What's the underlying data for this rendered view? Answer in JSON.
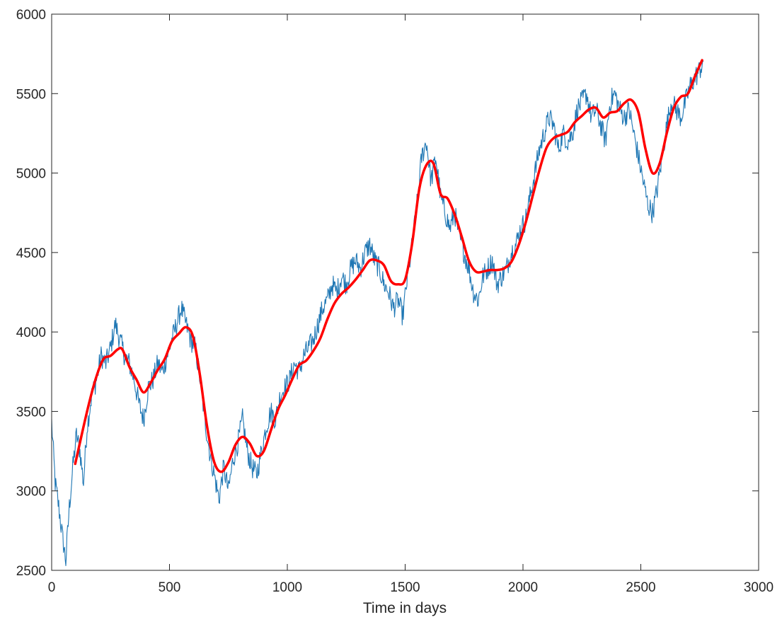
{
  "chart_data": {
    "type": "line",
    "xlabel": "Time in days",
    "ylabel": "",
    "title": "",
    "xlim": [
      0,
      3000
    ],
    "ylim": [
      2500,
      6000
    ],
    "xticks": [
      0,
      500,
      1000,
      1500,
      2000,
      2500,
      3000
    ],
    "yticks": [
      2500,
      3000,
      3500,
      4000,
      4500,
      5000,
      5500,
      6000
    ],
    "grid": false,
    "legend": "none",
    "series": [
      {
        "color": "#1f77b4",
        "kind": "noisy",
        "x": [
          0,
          15,
          30,
          45,
          60,
          75,
          90,
          105,
          120,
          135,
          150,
          170,
          190,
          210,
          230,
          250,
          270,
          290,
          310,
          330,
          350,
          370,
          390,
          410,
          430,
          450,
          470,
          490,
          510,
          530,
          550,
          570,
          590,
          610,
          630,
          650,
          670,
          690,
          710,
          730,
          750,
          770,
          790,
          810,
          830,
          850,
          870,
          890,
          910,
          930,
          950,
          970,
          990,
          1010,
          1030,
          1050,
          1070,
          1090,
          1110,
          1130,
          1150,
          1170,
          1190,
          1210,
          1230,
          1250,
          1270,
          1290,
          1310,
          1330,
          1350,
          1370,
          1390,
          1410,
          1430,
          1450,
          1470,
          1490,
          1510,
          1530,
          1550,
          1570,
          1590,
          1610,
          1630,
          1650,
          1670,
          1690,
          1710,
          1730,
          1750,
          1770,
          1790,
          1810,
          1830,
          1850,
          1870,
          1890,
          1910,
          1930,
          1950,
          1970,
          1990,
          2010,
          2030,
          2050,
          2070,
          2090,
          2110,
          2130,
          2150,
          2170,
          2190,
          2210,
          2230,
          2250,
          2270,
          2290,
          2310,
          2330,
          2350,
          2370,
          2390,
          2410,
          2430,
          2450,
          2470,
          2490,
          2510,
          2530,
          2550,
          2570,
          2590,
          2610,
          2630,
          2650,
          2670,
          2690,
          2710,
          2730,
          2750,
          2765
        ],
        "y": [
          3430,
          3050,
          2900,
          2720,
          2560,
          2900,
          3150,
          3350,
          3250,
          3050,
          3400,
          3600,
          3700,
          3850,
          3800,
          3900,
          4050,
          3950,
          3850,
          3800,
          3700,
          3550,
          3450,
          3650,
          3700,
          3800,
          3750,
          3850,
          3950,
          4050,
          4150,
          4050,
          3950,
          3900,
          3700,
          3450,
          3250,
          3100,
          2950,
          3150,
          3000,
          3200,
          3300,
          3450,
          3250,
          3150,
          3100,
          3250,
          3400,
          3500,
          3450,
          3600,
          3650,
          3700,
          3800,
          3750,
          3850,
          3900,
          3950,
          4050,
          4150,
          4200,
          4300,
          4250,
          4350,
          4300,
          4400,
          4450,
          4400,
          4500,
          4550,
          4450,
          4400,
          4300,
          4250,
          4150,
          4200,
          4100,
          4350,
          4550,
          4800,
          5100,
          5200,
          4950,
          5100,
          4850,
          4750,
          4650,
          4750,
          4600,
          4500,
          4400,
          4250,
          4200,
          4350,
          4400,
          4450,
          4300,
          4350,
          4400,
          4500,
          4550,
          4650,
          4700,
          4850,
          5000,
          5150,
          5250,
          5350,
          5300,
          5150,
          5250,
          5200,
          5250,
          5400,
          5450,
          5500,
          5350,
          5400,
          5300,
          5200,
          5450,
          5500,
          5400,
          5350,
          5400,
          5250,
          5100,
          4950,
          4800,
          4750,
          4900,
          5100,
          5300,
          5450,
          5400,
          5350,
          5450,
          5550,
          5600,
          5650,
          5700
        ]
      },
      {
        "color": "#ff0000",
        "kind": "smooth",
        "x": [
          100,
          130,
          160,
          190,
          220,
          250,
          280,
          300,
          330,
          360,
          390,
          420,
          450,
          480,
          510,
          540,
          570,
          600,
          630,
          660,
          690,
          720,
          750,
          780,
          810,
          840,
          870,
          900,
          930,
          960,
          990,
          1020,
          1050,
          1080,
          1110,
          1140,
          1170,
          1200,
          1230,
          1260,
          1290,
          1320,
          1350,
          1380,
          1410,
          1440,
          1470,
          1500,
          1530,
          1560,
          1590,
          1620,
          1650,
          1680,
          1710,
          1740,
          1770,
          1800,
          1830,
          1860,
          1890,
          1920,
          1950,
          1980,
          2010,
          2040,
          2070,
          2100,
          2130,
          2160,
          2190,
          2220,
          2250,
          2280,
          2310,
          2340,
          2370,
          2400,
          2430,
          2460,
          2490,
          2520,
          2550,
          2580,
          2610,
          2640,
          2670,
          2700,
          2730,
          2760
        ],
        "y": [
          3170,
          3370,
          3560,
          3720,
          3830,
          3850,
          3890,
          3890,
          3780,
          3700,
          3620,
          3680,
          3760,
          3830,
          3940,
          3990,
          4030,
          3970,
          3720,
          3400,
          3180,
          3120,
          3180,
          3290,
          3340,
          3300,
          3220,
          3250,
          3380,
          3510,
          3600,
          3700,
          3790,
          3820,
          3880,
          3960,
          4080,
          4180,
          4240,
          4280,
          4330,
          4390,
          4450,
          4450,
          4420,
          4320,
          4300,
          4330,
          4560,
          4900,
          5050,
          5060,
          4870,
          4840,
          4740,
          4600,
          4450,
          4380,
          4380,
          4390,
          4390,
          4400,
          4440,
          4540,
          4680,
          4850,
          5020,
          5160,
          5220,
          5240,
          5260,
          5320,
          5360,
          5400,
          5410,
          5350,
          5380,
          5390,
          5440,
          5460,
          5380,
          5150,
          5000,
          5060,
          5250,
          5410,
          5480,
          5500,
          5610,
          5710
        ]
      }
    ]
  }
}
